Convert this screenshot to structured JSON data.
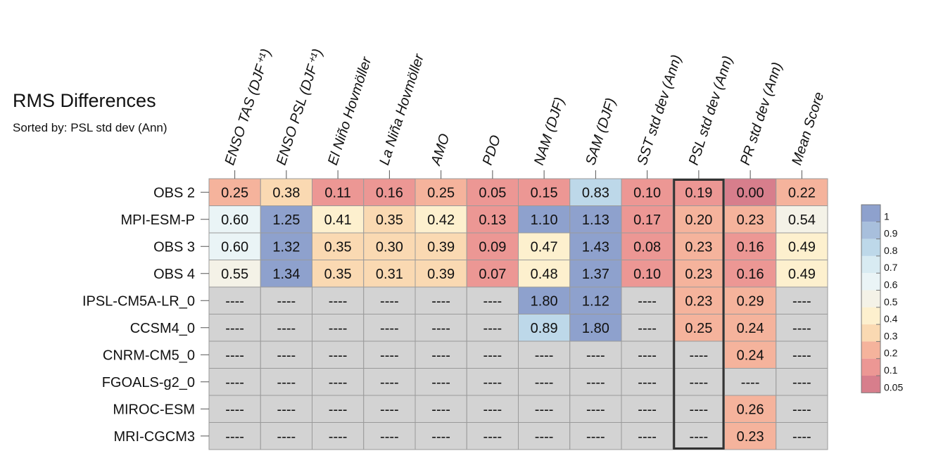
{
  "title": "RMS Differences",
  "subtitle": "Sorted by: PSL std dev (Ann)",
  "chart_data": {
    "type": "heatmap",
    "columns": [
      "ENSO TAS (DJF⁺¹)",
      "ENSO PSL (DJF⁺¹)",
      "El Niño Hovmöller",
      "La Niña Hovmöller",
      "AMO",
      "PDO",
      "NAM (DJF)",
      "SAM (DJF)",
      "SST std dev (Ann)",
      "PSL std dev (Ann)",
      "PR std dev (Ann)",
      "Mean Score"
    ],
    "rows": [
      "OBS 2",
      "MPI-ESM-P",
      "OBS 3",
      "OBS 4",
      "IPSL-CM5A-LR_0",
      "CCSM4_0",
      "CNRM-CM5_0",
      "FGOALS-g2_0",
      "MIROC-ESM",
      "MRI-CGCM3"
    ],
    "values": [
      [
        0.25,
        0.38,
        0.11,
        0.16,
        0.25,
        0.05,
        0.15,
        0.83,
        0.1,
        0.19,
        0.0,
        0.22
      ],
      [
        0.6,
        1.25,
        0.41,
        0.35,
        0.42,
        0.13,
        1.1,
        1.13,
        0.17,
        0.2,
        0.23,
        0.54
      ],
      [
        0.6,
        1.32,
        0.35,
        0.3,
        0.39,
        0.09,
        0.47,
        1.43,
        0.08,
        0.23,
        0.16,
        0.49
      ],
      [
        0.55,
        1.34,
        0.35,
        0.31,
        0.39,
        0.07,
        0.48,
        1.37,
        0.1,
        0.23,
        0.16,
        0.49
      ],
      [
        null,
        null,
        null,
        null,
        null,
        null,
        1.8,
        1.12,
        null,
        0.23,
        0.29,
        null
      ],
      [
        null,
        null,
        null,
        null,
        null,
        null,
        0.89,
        1.8,
        null,
        0.25,
        0.24,
        null
      ],
      [
        null,
        null,
        null,
        null,
        null,
        null,
        null,
        null,
        null,
        null,
        0.24,
        null
      ],
      [
        null,
        null,
        null,
        null,
        null,
        null,
        null,
        null,
        null,
        null,
        null,
        null
      ],
      [
        null,
        null,
        null,
        null,
        null,
        null,
        null,
        null,
        null,
        null,
        0.26,
        null
      ],
      [
        null,
        null,
        null,
        null,
        null,
        null,
        null,
        null,
        null,
        null,
        0.23,
        null
      ]
    ],
    "missing_label": "----",
    "highlight_column": "PSL std dev (Ann)",
    "legend": {
      "placement": "right",
      "labels": [
        "1",
        "0.9",
        "0.8",
        "0.7",
        "0.6",
        "0.5",
        "0.4",
        "0.3",
        "0.2",
        "0.1",
        "0.05"
      ],
      "colors": [
        "#8ea1cd",
        "#a8bfdc",
        "#bdd8e9",
        "#d8ebf2",
        "#eaf4f6",
        "#f4f2e7",
        "#fdf0ce",
        "#fad9b2",
        "#f5b39c",
        "#ec9794",
        "#d77e8c"
      ]
    },
    "missing_color": "#d3d3d3"
  }
}
